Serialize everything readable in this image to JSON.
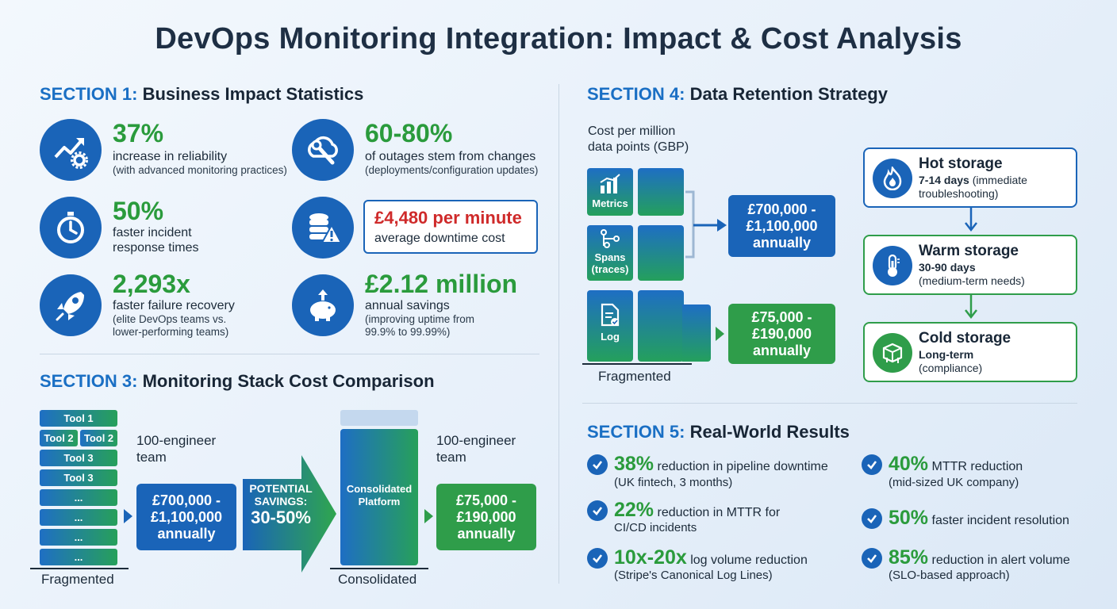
{
  "title": "DevOps Monitoring Integration: Impact & Cost Analysis",
  "section1": {
    "num": "SECTION 1:",
    "name": "Business Impact Statistics",
    "stats": [
      {
        "value": "37%",
        "desc": "increase in reliability",
        "sub": "(with advanced monitoring practices)",
        "icon": "growth-gear-icon"
      },
      {
        "value": "60-80%",
        "desc": "of outages stem from changes",
        "sub": "(deployments/configuration updates)",
        "icon": "cloud-wrench-icon"
      },
      {
        "value": "50%",
        "desc1": "faster incident",
        "desc2": "response times",
        "icon": "stopwatch-icon"
      },
      {
        "value": "£4,480 per minute",
        "desc": "average downtime cost",
        "icon": "database-warning-icon"
      },
      {
        "value": "2,293x",
        "desc": "faster failure recovery",
        "sub1": "(elite DevOps teams vs.",
        "sub2": "lower-performing teams)",
        "icon": "rocket-icon"
      },
      {
        "value": "£2.12 million",
        "desc": "annual savings",
        "sub1": "(improving uptime from",
        "sub2": "99.9% to 99.99%)",
        "icon": "piggy-bank-icon"
      }
    ]
  },
  "section3": {
    "num": "SECTION 3:",
    "name": "Monitoring Stack Cost Comparison",
    "tools": [
      "Tool 1",
      "Tool 2",
      "Tool 2",
      "Tool 3",
      "Tool 3",
      "...",
      "...",
      "...",
      "..."
    ],
    "team_label_1": "100-engineer",
    "team_label_2": "team",
    "fragmented_cost": [
      "£700,000 -",
      "£1,100,000",
      "annually"
    ],
    "savings_label_1": "POTENTIAL",
    "savings_label_2": "SAVINGS:",
    "savings_value": "30-50%",
    "consolidated_platform_1": "Consolidated",
    "consolidated_platform_2": "Platform",
    "consolidated_cost": [
      "£75,000 -",
      "£190,000",
      "annually"
    ],
    "fragmented_label": "Fragmented",
    "consolidated_label": "Consolidated"
  },
  "section4": {
    "num": "SECTION 4:",
    "name": "Data Retention Strategy",
    "cost_label_1": "Cost per million",
    "cost_label_2": "data points (GBP)",
    "sources": [
      {
        "label": "Metrics",
        "icon": "bar-chart-icon"
      },
      {
        "label1": "Spans",
        "label2": "(traces)",
        "icon": "trace-icon"
      },
      {
        "label": "Log",
        "icon": "log-document-icon"
      }
    ],
    "cost_top": [
      "£700,000 -",
      "£1,100,000",
      "annually"
    ],
    "cost_bottom": [
      "£75,000 -",
      "£190,000",
      "annually"
    ],
    "fragmented_label": "Fragmented",
    "tiers": [
      {
        "title": "Hot storage",
        "days": "7-14 days",
        "note_a": "(immediate",
        "note_b": "troubleshooting)",
        "icon": "flame-icon"
      },
      {
        "title": "Warm storage",
        "days": "30-90 days",
        "note": "(medium-term needs)",
        "icon": "thermometer-icon"
      },
      {
        "title": "Cold storage",
        "days": "Long-term",
        "note": "(compliance)",
        "icon": "ice-cube-icon"
      }
    ]
  },
  "section5": {
    "num": "SECTION 5:",
    "name": "Real-World Results",
    "results": [
      {
        "value": "38%",
        "text": "reduction in pipeline downtime",
        "sub": "(UK fintech, 3 months)"
      },
      {
        "value": "40%",
        "text": "MTTR reduction",
        "sub": "(mid-sized UK company)"
      },
      {
        "value": "22%",
        "text": "reduction in MTTR for",
        "sub": "CI/CD incidents"
      },
      {
        "value": "50%",
        "text": "faster incident resolution"
      },
      {
        "value": "10x-20x",
        "text": "log volume reduction",
        "sub": "(Stripe's Canonical Log Lines)"
      },
      {
        "value": "85%",
        "text": "reduction in alert volume",
        "sub": "(SLO-based approach)"
      }
    ]
  },
  "colors": {
    "blue": "#1a64b8",
    "green": "#2a9b3c",
    "red": "#cf2a2a",
    "dark": "#1e2f44"
  }
}
